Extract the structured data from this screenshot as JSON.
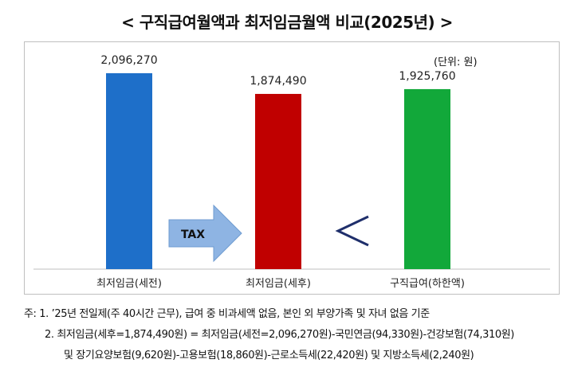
{
  "chart_data": {
    "type": "bar",
    "title": "< 구직급여월액과 최저임금월액 비교(2025년) >",
    "unit_label": "(단위: 원)",
    "categories": [
      "최저임금(세전)",
      "최저임금(세후)",
      "구직급여(하한액)"
    ],
    "values": [
      2096270,
      1874490,
      1925760
    ],
    "value_labels": [
      "2,096,270",
      "1,874,490",
      "1,925,760"
    ],
    "colors": [
      "#1e6fc9",
      "#c00000",
      "#12a83a"
    ],
    "ylim": [
      0,
      2300000
    ],
    "annotations": {
      "arrow_label": "TAX",
      "comparison_symbol": "<"
    }
  },
  "notes": {
    "line1": "주: 1. ’25년 전일제(주 40시간 근무), 급여 중 비과세액 없음, 본인 외 부양가족 및 자녀 없음 기준",
    "line2": "2. 최저임금(세후=1,874,490원) = 최저임금(세전=2,096,270원)-국민연금(94,330원)-건강보험(74,310원)",
    "line3": "및 장기요양보험(9,620원)-고용보험(18,860원)-근로소득세(22,420원) 및 지방소득세(2,240원)"
  }
}
